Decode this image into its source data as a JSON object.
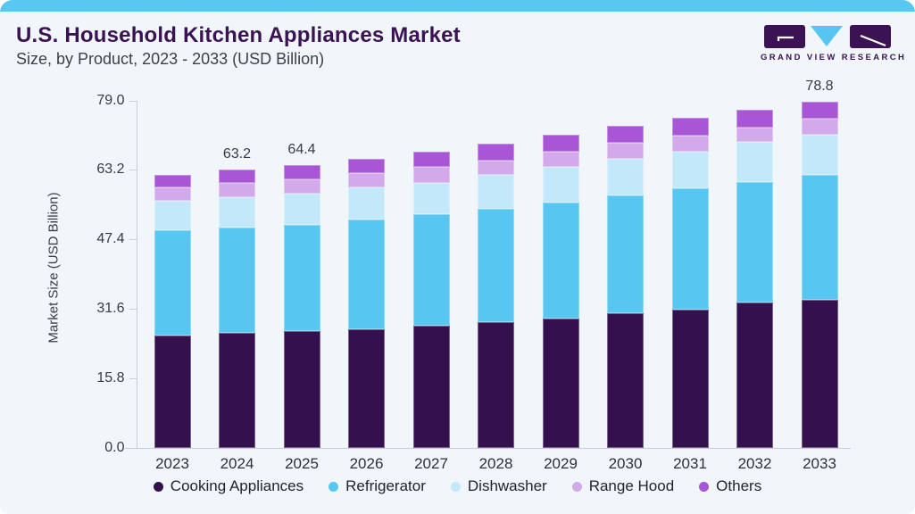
{
  "header": {
    "title": "U.S. Household Kitchen Appliances Market",
    "subtitle": "Size, by Product, 2023 - 2033 (USD Billion)"
  },
  "logo": {
    "brand": "GRAND VIEW RESEARCH",
    "icon": "gvr-logo-icon"
  },
  "colors": {
    "accent_strip": "#58c7f2",
    "background": "#f0f6fa",
    "title_text": "#3b1253",
    "axis_line": "#c9ced6"
  },
  "chart_data": {
    "type": "bar",
    "stacked": true,
    "title": "U.S. Household Kitchen Appliances Market",
    "subtitle": "Size, by Product, 2023 - 2033 (USD Billion)",
    "xlabel": "",
    "ylabel": "Market Size (USD Billion)",
    "ylim": [
      0,
      79.0
    ],
    "ytick_labels": [
      "79.0",
      "63.2",
      "47.4",
      "31.6",
      "15.8",
      "0.0"
    ],
    "grid": false,
    "legend_position": "bottom",
    "categories": [
      "2023",
      "2024",
      "2025",
      "2026",
      "2027",
      "2028",
      "2029",
      "2030",
      "2031",
      "2032",
      "2033"
    ],
    "bar_total_labels": [
      "",
      "63.2",
      "64.4",
      "",
      "",
      "",
      "",
      "",
      "",
      "",
      "78.8"
    ],
    "totals": [
      62.0,
      63.2,
      64.4,
      65.8,
      67.4,
      69.2,
      71.2,
      73.2,
      75.0,
      76.9,
      78.8
    ],
    "series": [
      {
        "name": "Cooking Appliances",
        "color": "#34114e",
        "values": [
          25.6,
          26.2,
          26.6,
          27.0,
          27.7,
          28.6,
          29.4,
          30.7,
          31.5,
          33.1,
          33.6
        ]
      },
      {
        "name": "Refrigerator",
        "color": "#57c7f2",
        "values": [
          23.9,
          23.9,
          24.1,
          24.9,
          25.4,
          25.7,
          26.3,
          26.8,
          27.5,
          27.3,
          28.5
        ]
      },
      {
        "name": "Dishwasher",
        "color": "#c2e8fa",
        "values": [
          6.7,
          6.8,
          7.2,
          7.4,
          7.2,
          7.7,
          8.1,
          8.3,
          8.3,
          9.1,
          9.1
        ]
      },
      {
        "name": "Range Hood",
        "color": "#d2a9ea",
        "values": [
          3.1,
          3.3,
          3.2,
          3.2,
          3.6,
          3.4,
          3.6,
          3.6,
          3.6,
          3.4,
          3.7
        ]
      },
      {
        "name": "Others",
        "color": "#a855d6",
        "values": [
          2.7,
          3.0,
          3.3,
          3.3,
          3.5,
          3.8,
          3.8,
          3.8,
          4.1,
          4.0,
          3.9
        ]
      }
    ]
  }
}
